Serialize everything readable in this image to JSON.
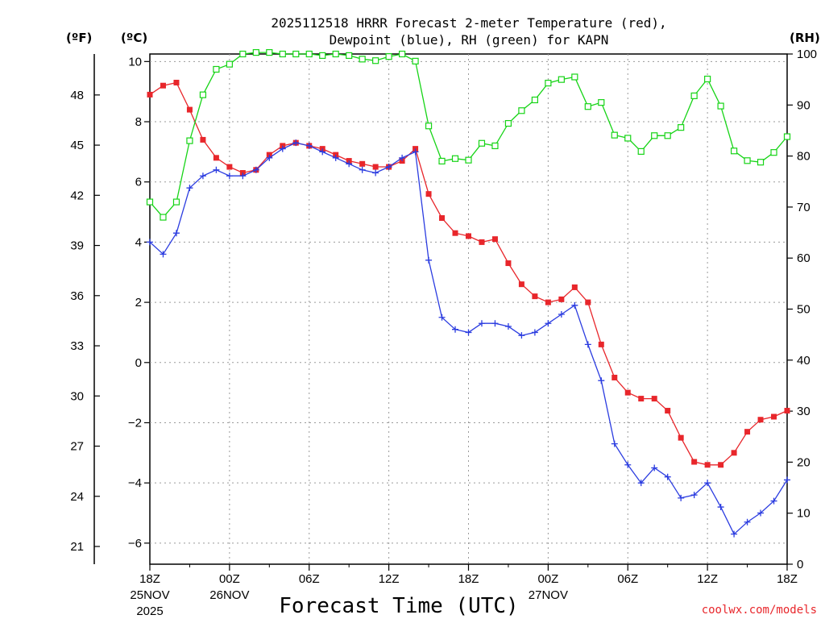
{
  "chart_data": {
    "type": "line",
    "title_line1": "2025112518 HRRR Forecast 2-meter Temperature (red),",
    "title_line2": "Dewpoint (blue), RH (green) for KAPN",
    "xlabel": "Forecast Time (UTC)",
    "credit": "coolwx.com/models",
    "units": {
      "fahrenheit": "(ºF)",
      "celsius": "(ºC)",
      "rh": "(RH)"
    },
    "x_range_hours": [
      0,
      48
    ],
    "left_ylim_c": [
      -6.7,
      10.25
    ],
    "right_ylim_rh": [
      0,
      100
    ],
    "x_ticks": [
      {
        "hour": 0,
        "label": "18Z",
        "sub1": "25NOV",
        "sub2": "2025"
      },
      {
        "hour": 6,
        "label": "00Z",
        "sub1": "26NOV",
        "sub2": ""
      },
      {
        "hour": 12,
        "label": "06Z",
        "sub1": "",
        "sub2": ""
      },
      {
        "hour": 18,
        "label": "12Z",
        "sub1": "",
        "sub2": ""
      },
      {
        "hour": 24,
        "label": "18Z",
        "sub1": "",
        "sub2": ""
      },
      {
        "hour": 30,
        "label": "00Z",
        "sub1": "27NOV",
        "sub2": ""
      },
      {
        "hour": 36,
        "label": "06Z",
        "sub1": "",
        "sub2": ""
      },
      {
        "hour": 42,
        "label": "12Z",
        "sub1": "",
        "sub2": ""
      },
      {
        "hour": 48,
        "label": "18Z",
        "sub1": "",
        "sub2": ""
      }
    ],
    "celsius_ticks": [
      {
        "value": 10,
        "label": "10"
      },
      {
        "value": 8,
        "label": "8"
      },
      {
        "value": 6,
        "label": "6"
      },
      {
        "value": 4,
        "label": "4"
      },
      {
        "value": 2,
        "label": "2"
      },
      {
        "value": 0,
        "label": "0"
      },
      {
        "value": -2,
        "label": "−2"
      },
      {
        "value": -4,
        "label": "−4"
      },
      {
        "value": -6,
        "label": "−6"
      }
    ],
    "fahrenheit_ticks": [
      {
        "value": 48,
        "label": "48"
      },
      {
        "value": 45,
        "label": "45"
      },
      {
        "value": 42,
        "label": "42"
      },
      {
        "value": 39,
        "label": "39"
      },
      {
        "value": 36,
        "label": "36"
      },
      {
        "value": 33,
        "label": "33"
      },
      {
        "value": 30,
        "label": "30"
      },
      {
        "value": 27,
        "label": "27"
      },
      {
        "value": 24,
        "label": "24"
      },
      {
        "value": 21,
        "label": "21"
      }
    ],
    "rh_ticks": [
      {
        "value": 100,
        "label": "100"
      },
      {
        "value": 90,
        "label": "90"
      },
      {
        "value": 80,
        "label": "80"
      },
      {
        "value": 70,
        "label": "70"
      },
      {
        "value": 60,
        "label": "60"
      },
      {
        "value": 50,
        "label": "50"
      },
      {
        "value": 40,
        "label": "40"
      },
      {
        "value": 30,
        "label": "30"
      },
      {
        "value": 20,
        "label": "20"
      },
      {
        "value": 10,
        "label": "10"
      },
      {
        "value": 0,
        "label": "0"
      }
    ],
    "series": [
      {
        "name": "Temperature (°C)",
        "axis": "celsius",
        "color": "#e8262b",
        "marker": "filled-square",
        "x": [
          0,
          1,
          2,
          3,
          4,
          5,
          6,
          7,
          8,
          9,
          10,
          11,
          12,
          13,
          14,
          15,
          16,
          17,
          18,
          19,
          20,
          21,
          22,
          23,
          24,
          25,
          26,
          27,
          28,
          29,
          30,
          31,
          32,
          33,
          34,
          35,
          36,
          37,
          38,
          39,
          40,
          41,
          42,
          43,
          44,
          45,
          46,
          47,
          48
        ],
        "values": [
          8.9,
          9.2,
          9.3,
          8.4,
          7.4,
          6.8,
          6.5,
          6.3,
          6.4,
          6.9,
          7.2,
          7.3,
          7.2,
          7.1,
          6.9,
          6.7,
          6.6,
          6.5,
          6.5,
          6.7,
          7.1,
          5.6,
          4.8,
          4.3,
          4.2,
          4.0,
          4.1,
          3.3,
          2.6,
          2.2,
          2.0,
          2.1,
          2.5,
          2.0,
          0.6,
          -0.5,
          -1.0,
          -1.2,
          -1.2,
          -1.6,
          -2.5,
          -3.3,
          -3.4,
          -3.4,
          -3.0,
          -2.3,
          -1.9,
          -1.8,
          -1.6
        ]
      },
      {
        "name": "Dewpoint (°C)",
        "axis": "celsius",
        "color": "#2b3ce0",
        "marker": "plus",
        "x": [
          0,
          1,
          2,
          3,
          4,
          5,
          6,
          7,
          8,
          9,
          10,
          11,
          12,
          13,
          14,
          15,
          16,
          17,
          18,
          19,
          20,
          21,
          22,
          23,
          24,
          25,
          26,
          27,
          28,
          29,
          30,
          31,
          32,
          33,
          34,
          35,
          36,
          37,
          38,
          39,
          40,
          41,
          42,
          43,
          44,
          45,
          46,
          47,
          48
        ],
        "values": [
          4.0,
          3.6,
          4.3,
          5.8,
          6.2,
          6.4,
          6.2,
          6.2,
          6.4,
          6.8,
          7.1,
          7.3,
          7.2,
          7.0,
          6.8,
          6.6,
          6.4,
          6.3,
          6.5,
          6.8,
          7.0,
          3.4,
          1.5,
          1.1,
          1.0,
          1.3,
          1.3,
          1.2,
          0.9,
          1.0,
          1.3,
          1.6,
          1.9,
          0.6,
          -0.6,
          -2.7,
          -3.4,
          -4.0,
          -3.5,
          -3.8,
          -4.5,
          -4.4,
          -4.0,
          -4.8,
          -5.7,
          -5.3,
          -5.0,
          -4.6,
          -3.9
        ]
      },
      {
        "name": "Relative Humidity (%)",
        "axis": "rh",
        "color": "#16d416",
        "marker": "open-square",
        "x": [
          0,
          1,
          2,
          3,
          4,
          5,
          6,
          7,
          8,
          9,
          10,
          11,
          12,
          13,
          14,
          15,
          16,
          17,
          18,
          19,
          20,
          21,
          22,
          23,
          24,
          25,
          26,
          27,
          28,
          29,
          30,
          31,
          32,
          33,
          34,
          35,
          36,
          37,
          38,
          39,
          40,
          41,
          42,
          43,
          44,
          45,
          46,
          47,
          48
        ],
        "values": [
          71,
          68,
          71,
          83,
          92,
          97,
          98,
          100,
          100.3,
          100.3,
          100,
          100,
          100,
          99.7,
          100,
          99.7,
          99,
          98.7,
          99.5,
          100,
          98.6,
          85.9,
          79,
          79.5,
          79.2,
          82.5,
          82,
          86.4,
          88.9,
          91,
          94.3,
          95,
          95.5,
          89.7,
          90.5,
          84.1,
          83.5,
          80.9,
          84,
          84,
          85.6,
          91.8,
          95.1,
          89.8,
          81,
          79.1,
          78.8,
          80.7,
          83.8
        ]
      }
    ]
  }
}
